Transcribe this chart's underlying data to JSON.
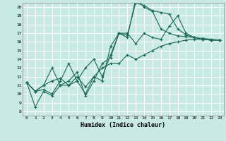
{
  "title": "",
  "xlabel": "Humidex (Indice chaleur)",
  "ylabel": "",
  "bg_color": "#c8eae4",
  "line_color": "#1a6b5a",
  "grid_color": "#ffffff",
  "xlim": [
    -0.5,
    23.5
  ],
  "ylim": [
    7.5,
    20.5
  ],
  "xticks": [
    0,
    1,
    2,
    3,
    4,
    5,
    6,
    7,
    8,
    9,
    10,
    11,
    12,
    13,
    14,
    15,
    16,
    17,
    18,
    19,
    20,
    21,
    22,
    23
  ],
  "yticks": [
    8,
    9,
    10,
    11,
    12,
    13,
    14,
    15,
    16,
    17,
    18,
    19,
    20
  ],
  "series": [
    [
      11.3,
      8.5,
      10.3,
      9.8,
      11.0,
      11.5,
      12.5,
      9.8,
      11.5,
      13.5,
      14.2,
      17.0,
      16.8,
      20.5,
      20.2,
      19.6,
      19.4,
      19.2,
      17.5,
      16.8,
      16.5,
      16.3,
      16.2,
      16.2
    ],
    [
      11.3,
      10.3,
      11.0,
      13.0,
      11.0,
      11.0,
      12.0,
      10.8,
      12.0,
      11.5,
      15.5,
      17.0,
      16.5,
      21.0,
      20.0,
      19.5,
      17.5,
      17.0,
      16.7,
      16.6,
      16.5,
      16.4,
      16.3,
      16.2
    ],
    [
      11.3,
      10.3,
      10.5,
      10.0,
      11.5,
      13.5,
      11.5,
      13.0,
      14.0,
      12.0,
      14.5,
      17.0,
      17.0,
      15.8,
      17.0,
      16.5,
      16.3,
      17.8,
      19.0,
      17.0,
      16.5,
      16.3,
      16.2,
      16.2
    ],
    [
      11.3,
      10.3,
      11.0,
      11.5,
      11.8,
      11.0,
      11.5,
      10.0,
      12.0,
      13.0,
      13.5,
      13.5,
      14.5,
      14.0,
      14.5,
      15.0,
      15.5,
      15.8,
      16.0,
      16.2,
      16.3,
      16.3,
      16.2,
      16.2
    ]
  ]
}
